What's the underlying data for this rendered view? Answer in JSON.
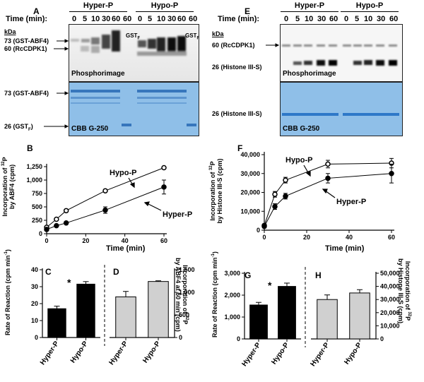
{
  "left": {
    "panel_a": {
      "label": "A",
      "time_label": "Time (min):",
      "group_hyper": "Hyper-P",
      "group_hypo": "Hypo-P",
      "times": [
        "0",
        "5",
        "10",
        "30",
        "60",
        "60",
        "0",
        "5",
        "10",
        "30",
        "60",
        "60"
      ],
      "kda": "kDa",
      "marker_abf4": "73 (GST-ABF4)",
      "marker_cdpk": "60 (RcCDPK1)",
      "marker_abf4_cbb": "73 (GST-ABF4)",
      "marker_gst_cbb": "26 (GST",
      "gst_sub": "F",
      "gst_close": ")",
      "gst_lane_label": "GST",
      "gst_lane_sub": "F",
      "phospho": "Phosphorimage",
      "cbb": "CBB G-250"
    },
    "panel_b": {
      "label": "B",
      "ylabel1": "Incorporation of ",
      "ylabel_sup": "32",
      "ylabel2": "P",
      "ylabel_line2": "by ABF4 (cpm)",
      "xlabel": "Time (min)",
      "callout_hypo": "Hypo-P",
      "callout_hyper": "Hyper-P"
    },
    "panel_c": {
      "label": "C",
      "ylabel": "Rate of Reaction (cpm min",
      "ysup": "-1",
      "yclose": ")",
      "star": "*"
    },
    "panel_d": {
      "label": "D",
      "ylabel1": "Incorporation of ",
      "ysup": "32",
      "ylabel2": "P",
      "ylabel_line2": "by ABF4 at 60 min (cpm)"
    }
  },
  "right": {
    "panel_e": {
      "label": "E",
      "time_label": "Time (min):",
      "group_hyper": "Hyper-P",
      "group_hypo": "Hypo-P",
      "times": [
        "0",
        "5",
        "10",
        "30",
        "60",
        "0",
        "5",
        "10",
        "30",
        "60"
      ],
      "kda": "kDa",
      "marker_cdpk": "60 (RcCDPK1)",
      "marker_histone": "26 (Histone III-S)",
      "marker_histone_cbb": "26 (Histone III-S)",
      "phospho": "Phosphorimage",
      "cbb": "CBB G-250"
    },
    "panel_f": {
      "label": "F",
      "ylabel1": "Incorporation of ",
      "ylabel_sup": "32",
      "ylabel2": "P",
      "ylabel_line2": "by Histone ",
      "ylabel_roman": "III",
      "ylabel_end": "-S (cpm)",
      "xlabel": "Time (min)",
      "callout_hypo": "Hypo-P",
      "callout_hyper": "Hyper-P"
    },
    "panel_g": {
      "label": "G",
      "ylabel": "Rate of Reaction (cpm min",
      "ysup": "-1",
      "yclose": ")",
      "star": "*"
    },
    "panel_h": {
      "label": "H",
      "ylabel1": "Incorporation of ",
      "ysup": "32",
      "ylabel2": "P",
      "ylabel_line2": "by Histone ",
      "ylabel_roman": "III",
      "ylabel_end": "-S (cpm)"
    }
  },
  "chart_data": [
    {
      "id": "B",
      "type": "line",
      "xlabel": "Time (min)",
      "ylabel": "Incorporation of 32P by ABF4 (cpm)",
      "xlim": [
        0,
        60
      ],
      "ylim": [
        0,
        1250
      ],
      "xticks": [
        0,
        20,
        40,
        60
      ],
      "yticks": [
        0,
        250,
        500,
        750,
        1000,
        1250
      ],
      "yticklabels": [
        "0",
        "250",
        "500",
        "750",
        "1,000",
        "1,250"
      ],
      "x": [
        0,
        5,
        10,
        30,
        60
      ],
      "series": [
        {
          "name": "Hypo-P",
          "marker": "open",
          "values": [
            120,
            270,
            430,
            800,
            1230
          ],
          "err": [
            15,
            20,
            20,
            20,
            15
          ]
        },
        {
          "name": "Hyper-P",
          "marker": "filled",
          "values": [
            80,
            150,
            200,
            440,
            870
          ],
          "err": [
            10,
            15,
            15,
            60,
            130
          ]
        }
      ]
    },
    {
      "id": "C",
      "type": "bar",
      "categories": [
        "Hyper-P",
        "Hypo-P"
      ],
      "values": [
        17,
        31.5
      ],
      "err": [
        1.5,
        1.5
      ],
      "colors": [
        "#000000",
        "#000000"
      ],
      "ylim": [
        0,
        40
      ],
      "yticks": [
        0,
        10,
        20,
        30,
        40
      ],
      "yticklabels": [
        "0",
        "10",
        "20",
        "30",
        "40"
      ],
      "ylabel": "Rate of Reaction (cpm min-1)",
      "annotation": "*"
    },
    {
      "id": "D",
      "type": "bar",
      "categories": [
        "Hyper-P",
        "Hypo-P"
      ],
      "values": [
        900,
        1240
      ],
      "err": [
        120,
        15
      ],
      "colors": [
        "#d0d0d0",
        "#d0d0d0"
      ],
      "ylim": [
        0,
        1500
      ],
      "yticks": [
        0,
        500,
        1000,
        1500
      ],
      "yticklabels": [
        "0",
        "500",
        "1,000",
        "1,500"
      ],
      "ylabel": "Incorporation of 32P by ABF4 at 60 min (cpm)",
      "axis_side": "right"
    },
    {
      "id": "F",
      "type": "line",
      "xlabel": "Time (min)",
      "ylabel": "Incorporation of 32P by Histone III-S (cpm)",
      "xlim": [
        0,
        60
      ],
      "ylim": [
        0,
        40000
      ],
      "xticks": [
        0,
        20,
        40,
        60
      ],
      "yticks": [
        0,
        10000,
        20000,
        30000,
        40000
      ],
      "yticklabels": [
        "0",
        "10,000",
        "20,000",
        "30,000",
        "40,000"
      ],
      "x": [
        0,
        5,
        10,
        30,
        60
      ],
      "series": [
        {
          "name": "Hypo-P",
          "marker": "open",
          "values": [
            2500,
            19000,
            26500,
            35000,
            35500
          ],
          "err": [
            800,
            1500,
            1500,
            2000,
            2500
          ]
        },
        {
          "name": "Hyper-P",
          "marker": "filled",
          "values": [
            2000,
            12500,
            18000,
            27500,
            30000
          ],
          "err": [
            800,
            1500,
            1500,
            2500,
            5000
          ]
        }
      ]
    },
    {
      "id": "G",
      "type": "bar",
      "categories": [
        "Hyper-P",
        "Hypo-P"
      ],
      "values": [
        1550,
        2400
      ],
      "err": [
        120,
        150
      ],
      "colors": [
        "#000000",
        "#000000"
      ],
      "ylim": [
        0,
        3000
      ],
      "yticks": [
        0,
        1000,
        2000,
        3000
      ],
      "yticklabels": [
        "0",
        "1,000",
        "2,000",
        "3,000"
      ],
      "ylabel": "Rate of Reaction (cpm min-1)",
      "annotation": "*"
    },
    {
      "id": "H",
      "type": "bar",
      "categories": [
        "Hyper-P",
        "Hypo-P"
      ],
      "values": [
        30000,
        35000
      ],
      "err": [
        3500,
        2500
      ],
      "colors": [
        "#d0d0d0",
        "#d0d0d0"
      ],
      "ylim": [
        0,
        50000
      ],
      "yticks": [
        0,
        10000,
        20000,
        30000,
        40000,
        50000
      ],
      "yticklabels": [
        "0",
        "10,000",
        "20,000",
        "30,000",
        "40,000",
        "50,000"
      ],
      "ylabel": "Incorporation of 32P by Histone III-S (cpm)",
      "axis_side": "right"
    }
  ]
}
